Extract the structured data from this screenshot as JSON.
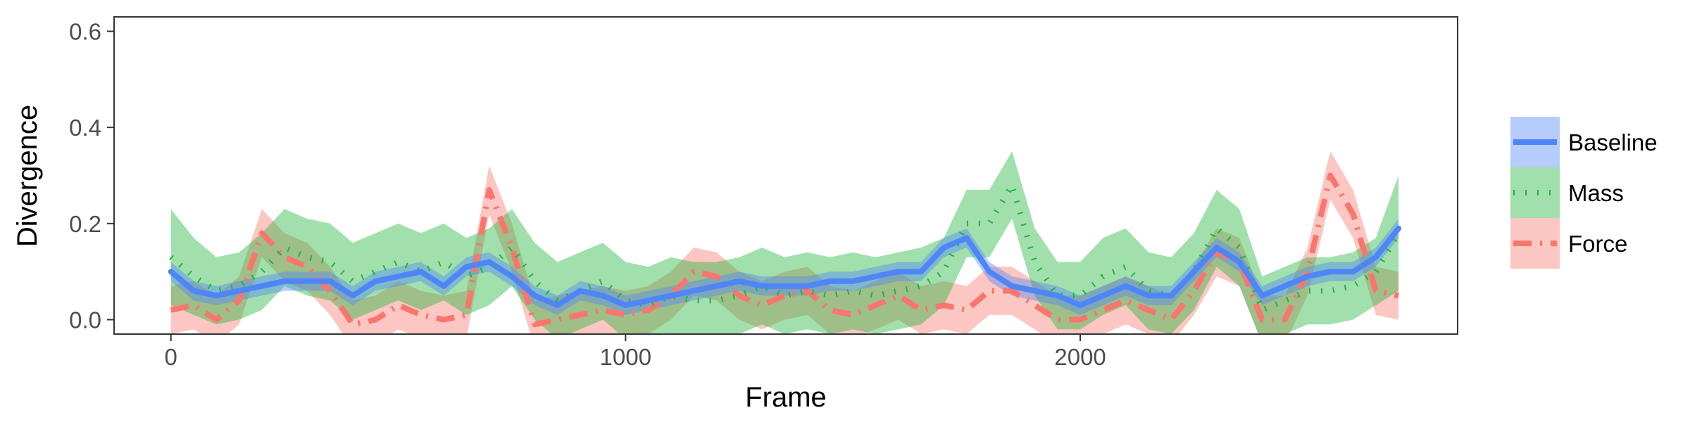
{
  "chart_data": {
    "type": "line",
    "title": "",
    "xlabel": "Frame",
    "ylabel": "Divergence",
    "xlim": [
      -125,
      2830
    ],
    "ylim": [
      -0.03,
      0.63
    ],
    "xticks": [
      0,
      1000,
      2000
    ],
    "xtick_labels": [
      "0",
      "1000",
      "2000"
    ],
    "yticks": [
      0.0,
      0.2,
      0.4,
      0.6
    ],
    "ytick_labels": [
      "0.0",
      "0.2",
      "0.4",
      "0.6"
    ],
    "grid": false,
    "legend_position": "right",
    "x": [
      0,
      50,
      100,
      150,
      200,
      250,
      300,
      350,
      400,
      450,
      500,
      550,
      600,
      650,
      700,
      750,
      800,
      850,
      900,
      950,
      1000,
      1050,
      1100,
      1150,
      1200,
      1250,
      1300,
      1350,
      1400,
      1450,
      1500,
      1550,
      1600,
      1650,
      1700,
      1750,
      1800,
      1850,
      1900,
      1950,
      2000,
      2050,
      2100,
      2150,
      2200,
      2250,
      2300,
      2350,
      2400,
      2450,
      2500,
      2550,
      2600,
      2650,
      2700
    ],
    "series": [
      {
        "name": "Baseline",
        "color": "#4f86f7",
        "line_style": "solid",
        "values": [
          0.1,
          0.06,
          0.05,
          0.06,
          0.07,
          0.08,
          0.08,
          0.08,
          0.05,
          0.08,
          0.09,
          0.1,
          0.07,
          0.11,
          0.12,
          0.09,
          0.05,
          0.03,
          0.06,
          0.05,
          0.03,
          0.04,
          0.05,
          0.06,
          0.07,
          0.08,
          0.07,
          0.07,
          0.07,
          0.08,
          0.08,
          0.09,
          0.1,
          0.1,
          0.15,
          0.17,
          0.1,
          0.07,
          0.06,
          0.05,
          0.03,
          0.05,
          0.07,
          0.05,
          0.05,
          0.1,
          0.15,
          0.12,
          0.05,
          0.07,
          0.09,
          0.1,
          0.1,
          0.13,
          0.19
        ],
        "lower": [
          0.08,
          0.04,
          0.03,
          0.04,
          0.05,
          0.06,
          0.06,
          0.06,
          0.03,
          0.06,
          0.07,
          0.08,
          0.05,
          0.09,
          0.1,
          0.07,
          0.03,
          0.01,
          0.04,
          0.03,
          0.01,
          0.02,
          0.03,
          0.04,
          0.05,
          0.06,
          0.05,
          0.05,
          0.05,
          0.06,
          0.06,
          0.07,
          0.08,
          0.08,
          0.13,
          0.15,
          0.08,
          0.05,
          0.04,
          0.03,
          0.01,
          0.03,
          0.05,
          0.03,
          0.03,
          0.08,
          0.13,
          0.1,
          0.03,
          0.05,
          0.07,
          0.08,
          0.08,
          0.11,
          0.17
        ],
        "upper": [
          0.12,
          0.08,
          0.07,
          0.08,
          0.09,
          0.1,
          0.1,
          0.1,
          0.07,
          0.1,
          0.11,
          0.12,
          0.09,
          0.13,
          0.14,
          0.11,
          0.07,
          0.05,
          0.08,
          0.07,
          0.05,
          0.06,
          0.07,
          0.08,
          0.09,
          0.1,
          0.09,
          0.09,
          0.09,
          0.1,
          0.1,
          0.11,
          0.12,
          0.12,
          0.17,
          0.19,
          0.12,
          0.09,
          0.08,
          0.07,
          0.05,
          0.07,
          0.09,
          0.07,
          0.07,
          0.12,
          0.17,
          0.14,
          0.07,
          0.09,
          0.11,
          0.12,
          0.12,
          0.15,
          0.21
        ]
      },
      {
        "name": "Mass",
        "color": "#1fb53a",
        "line_style": "dotted",
        "values": [
          0.13,
          0.09,
          0.06,
          0.07,
          0.1,
          0.15,
          0.13,
          0.12,
          0.08,
          0.1,
          0.12,
          0.1,
          0.12,
          0.09,
          0.11,
          0.15,
          0.08,
          0.04,
          0.06,
          0.08,
          0.04,
          0.03,
          0.05,
          0.04,
          0.04,
          0.05,
          0.07,
          0.05,
          0.06,
          0.05,
          0.06,
          0.05,
          0.06,
          0.07,
          0.1,
          0.2,
          0.2,
          0.28,
          0.12,
          0.05,
          0.05,
          0.09,
          0.11,
          0.06,
          0.05,
          0.1,
          0.19,
          0.15,
          0.02,
          0.04,
          0.06,
          0.06,
          0.07,
          0.1,
          0.18
        ],
        "lower": [
          0.03,
          0.01,
          -0.01,
          0.0,
          0.02,
          0.07,
          0.05,
          0.04,
          0.0,
          0.02,
          0.04,
          0.02,
          0.04,
          0.01,
          0.03,
          0.07,
          0.0,
          -0.04,
          -0.02,
          0.0,
          -0.04,
          -0.05,
          -0.03,
          -0.04,
          -0.04,
          -0.03,
          -0.01,
          -0.03,
          -0.02,
          -0.03,
          -0.02,
          -0.03,
          -0.02,
          -0.01,
          0.03,
          0.13,
          0.13,
          0.21,
          0.05,
          -0.02,
          -0.02,
          0.01,
          0.03,
          -0.02,
          -0.03,
          0.02,
          0.11,
          0.07,
          -0.05,
          -0.03,
          -0.01,
          -0.01,
          0.0,
          0.03,
          0.06
        ],
        "upper": [
          0.23,
          0.17,
          0.13,
          0.14,
          0.18,
          0.23,
          0.21,
          0.2,
          0.16,
          0.18,
          0.2,
          0.18,
          0.2,
          0.17,
          0.19,
          0.23,
          0.16,
          0.12,
          0.14,
          0.16,
          0.12,
          0.11,
          0.13,
          0.12,
          0.12,
          0.13,
          0.15,
          0.13,
          0.14,
          0.13,
          0.14,
          0.13,
          0.14,
          0.15,
          0.17,
          0.27,
          0.27,
          0.35,
          0.19,
          0.12,
          0.12,
          0.17,
          0.19,
          0.14,
          0.13,
          0.18,
          0.27,
          0.23,
          0.09,
          0.11,
          0.13,
          0.13,
          0.14,
          0.17,
          0.3
        ]
      },
      {
        "name": "Force",
        "color": "#f8766d",
        "line_style": "dashdot",
        "values": [
          0.02,
          0.03,
          0.0,
          0.04,
          0.18,
          0.13,
          0.11,
          0.06,
          -0.01,
          0.0,
          0.03,
          0.01,
          0.0,
          0.01,
          0.27,
          0.15,
          -0.01,
          0.0,
          0.01,
          0.02,
          0.01,
          0.02,
          0.05,
          0.1,
          0.09,
          0.05,
          0.03,
          0.05,
          0.06,
          0.02,
          0.01,
          0.03,
          0.05,
          0.02,
          0.03,
          0.02,
          0.06,
          0.06,
          0.03,
          0.0,
          0.0,
          0.02,
          0.04,
          0.02,
          0.0,
          0.06,
          0.14,
          0.12,
          0.0,
          0.0,
          0.1,
          0.3,
          0.22,
          0.06,
          0.05
        ],
        "lower": [
          -0.03,
          -0.02,
          -0.05,
          -0.01,
          0.13,
          0.08,
          0.06,
          0.01,
          -0.06,
          -0.05,
          -0.02,
          -0.04,
          -0.05,
          -0.04,
          0.22,
          0.1,
          -0.06,
          -0.05,
          -0.04,
          -0.03,
          -0.04,
          -0.03,
          0.0,
          0.05,
          0.04,
          0.0,
          -0.02,
          0.0,
          0.01,
          -0.03,
          -0.04,
          -0.02,
          0.0,
          -0.03,
          -0.02,
          -0.03,
          0.01,
          0.01,
          -0.02,
          -0.05,
          -0.05,
          -0.03,
          -0.01,
          -0.03,
          -0.05,
          0.01,
          0.09,
          0.07,
          -0.05,
          -0.05,
          0.05,
          0.25,
          0.17,
          0.01,
          0.0
        ],
        "upper": [
          0.07,
          0.08,
          0.05,
          0.09,
          0.23,
          0.18,
          0.16,
          0.11,
          0.04,
          0.05,
          0.08,
          0.06,
          0.05,
          0.06,
          0.32,
          0.2,
          0.04,
          0.05,
          0.06,
          0.07,
          0.06,
          0.07,
          0.1,
          0.15,
          0.14,
          0.1,
          0.08,
          0.1,
          0.11,
          0.07,
          0.06,
          0.08,
          0.1,
          0.07,
          0.08,
          0.07,
          0.11,
          0.11,
          0.08,
          0.05,
          0.05,
          0.07,
          0.09,
          0.07,
          0.05,
          0.11,
          0.19,
          0.17,
          0.05,
          0.05,
          0.15,
          0.35,
          0.27,
          0.11,
          0.1
        ]
      }
    ]
  }
}
